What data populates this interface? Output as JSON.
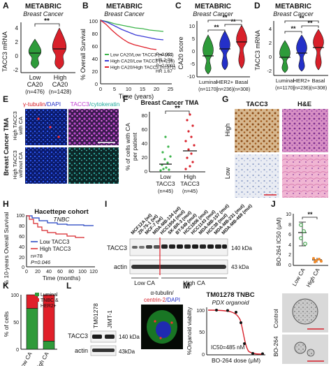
{
  "panel_labels": [
    "A",
    "B",
    "C",
    "D",
    "E",
    "F",
    "G",
    "H",
    "I",
    "J",
    "K",
    "L",
    "M"
  ],
  "panelA": {
    "title": "METABRIC",
    "subtitle": "Breast Cancer",
    "ylabel": "TACC3 mRNA",
    "yticks": [
      "4",
      "2",
      "0",
      "-2"
    ],
    "significance": "**",
    "groups": [
      {
        "name": "Low",
        "sub": "CA20",
        "n": "(n=476)"
      },
      {
        "name": "High",
        "sub": "CA20",
        "n": "(n=1428)"
      }
    ]
  },
  "panelB": {
    "title": "METABRIC",
    "subtitle": "Breast Cancer",
    "ylabel": "% Overall Survival",
    "xlabel": "Time (years)",
    "yticks": [
      "100",
      "80",
      "60",
      "40",
      "20",
      "0"
    ],
    "xticks": [
      "0",
      "5",
      "10",
      "15",
      "20",
      "25"
    ],
    "legend": [
      {
        "label": "Low CA20/Low TACC3 (n=160)",
        "color": "#3cb44b"
      },
      {
        "label": "High CA20/Low TACC3 (n=216)",
        "color": "#3b3bd6"
      },
      {
        "label": "High CA20/High TACC3 (n=371)",
        "color": "#e0202a"
      }
    ],
    "stats": [
      "P=0.001",
      "HR 2.78",
      "P=0.0001",
      "HR 1.67"
    ]
  },
  "panelC": {
    "title": "METABRIC",
    "subtitle": "Breast Cancer",
    "ylabel": "CA20 score",
    "yticks": [
      "10",
      "5",
      "0",
      "-5",
      "-10"
    ],
    "significance": [
      "**",
      "**",
      "**"
    ],
    "groups": [
      {
        "name": "Luminal",
        "n": "(n=1170)"
      },
      {
        "name": "HER2+",
        "n": "(n=236)"
      },
      {
        "name": "Basal",
        "n": "(n=308)"
      }
    ]
  },
  "panelD": {
    "title": "METABRIC",
    "subtitle": "Breast Cancer",
    "ylabel": "TACC3 mRNA",
    "yticks": [
      "4",
      "2",
      "0",
      "-2"
    ],
    "significance": [
      "**",
      "**",
      "**"
    ],
    "groups": [
      {
        "name": "Luminal",
        "n": "(n=1170)"
      },
      {
        "name": "HER2+",
        "n": "(n=236)"
      },
      {
        "name": "Basal",
        "n": "(n=308)"
      }
    ]
  },
  "panelE": {
    "row_header": "Breast Cancer TMA",
    "col1_a": "γ-tubulin",
    "col1_b": "/DAPI",
    "col2_a": "TACC3",
    "col2_b": "/cytokeratin",
    "rows": [
      {
        "l1": "High TACC3",
        "l2": "with CA"
      },
      {
        "l1": "High TACC3",
        "l2": "without CA"
      }
    ]
  },
  "panelF": {
    "title": "Breast Cancer TMA",
    "ylabel_1": "% of cells with CA",
    "ylabel_2": "per patient",
    "yticks": [
      "80",
      "60",
      "40",
      "20",
      "0"
    ],
    "significance": "**",
    "groups": [
      {
        "name": "Low",
        "sub": "TACC3",
        "n": "(n=45)"
      },
      {
        "name": "High",
        "sub": "TACC3",
        "n": "(n=45)"
      }
    ]
  },
  "panelG": {
    "cols": [
      "TACC3",
      "H&E"
    ],
    "rows": [
      "High",
      "Low"
    ]
  },
  "panelH": {
    "title": "Hacettepe cohort",
    "subtitle": "TNBC",
    "ylabel": "% 10-years Overall Survival",
    "xlabel": "Time (months)",
    "yticks": [
      "100",
      "80",
      "60",
      "40",
      "20",
      "0"
    ],
    "xticks": [
      "0",
      "20",
      "40",
      "60",
      "80",
      "100",
      "120"
    ],
    "legend": [
      {
        "label": "Low TACC3",
        "color": "#1f3fbf"
      },
      {
        "label": "High TACC3",
        "color": "#d8262b"
      }
    ],
    "n": "n=78",
    "p": "P=0.046"
  },
  "panelI": {
    "cell_lines": [
      "MCF12A (wt)",
      "ZR-75-1 (wt)",
      "MCF-7 (wt)",
      "MDA-MB-134 (wt)",
      "HCC1954 (mut)",
      "SK-BR-3 (mut)",
      "BT-549 (mut)",
      "HCC1806 (mut)",
      "HCC1143 (mut)",
      "MDA-MB-157 (mut)",
      "HCC38 (mut)",
      "MDA-MB-231 (mut)",
      "MDA-MB-468 (mut)"
    ],
    "bands": [
      {
        "name": "TACC3",
        "size": "140 kDa"
      },
      {
        "name": "actin",
        "size": "43 kDa"
      }
    ],
    "groups": [
      "Low CA",
      "High CA"
    ]
  },
  "panelJ": {
    "ylabel": "BO-264 IC50 (μM)",
    "yticks": [
      "10",
      "8",
      "6",
      "4",
      "2",
      "0"
    ],
    "significance": "**",
    "groups": [
      "Low CA",
      "High CA"
    ]
  },
  "panelK": {
    "ylabel": "% of cells",
    "yticks": [
      "100",
      "50",
      "0"
    ],
    "legend": [
      {
        "label": "Luminal",
        "color": "#2f9a3a"
      },
      {
        "label": "TNBC &",
        "color": "#e0202a"
      },
      {
        "label": "HER2+",
        "color": "#e0202a"
      }
    ],
    "groups": [
      "Low CA",
      "High CA"
    ],
    "chart_data": {
      "type": "bar",
      "categories": [
        "Low CA",
        "High CA"
      ],
      "series": [
        {
          "name": "Luminal",
          "values": [
            75,
            15
          ]
        },
        {
          "name": "TNBC & HER2+",
          "values": [
            25,
            85
          ]
        }
      ],
      "ylim": [
        0,
        100
      ]
    }
  },
  "panelL": {
    "cols": [
      "TM01278",
      "JIMT-1"
    ],
    "bands": [
      {
        "name": "TACC3",
        "size": "140 kDa"
      },
      {
        "name": "actin",
        "size": "43kDa"
      }
    ],
    "if_l1": "α-tubulin/",
    "if_l2a": "centrin-2",
    "if_l2b": "/DAPI"
  },
  "panelM": {
    "title": "TM01278 TNBC",
    "subtitle": "PDX organoid",
    "ylabel": "%Organoid viability",
    "xlabel": "BO-264 dose (μM)",
    "yticks": [
      "100",
      "50",
      "0"
    ],
    "ic50": "IC50=485 nM",
    "images": [
      "Control",
      "BO-264"
    ]
  }
}
